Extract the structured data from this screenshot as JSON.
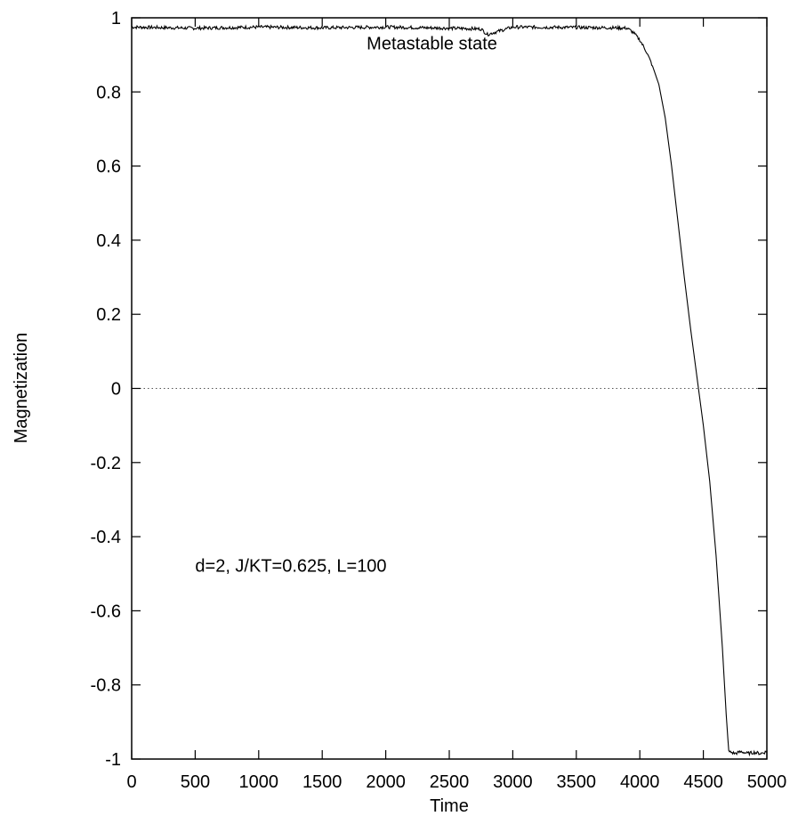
{
  "chart_data": {
    "type": "line",
    "title": "",
    "xlabel": "Time",
    "ylabel": "Magnetization",
    "xlim": [
      0,
      5000
    ],
    "ylim": [
      -1,
      1
    ],
    "x_ticks": [
      0,
      500,
      1000,
      1500,
      2000,
      2500,
      3000,
      3500,
      4000,
      4500,
      5000
    ],
    "x_tick_labels": [
      "0",
      "500",
      "1000",
      "1500",
      "2000",
      "2500",
      "3000",
      "3500",
      "4000",
      "4500",
      "5000"
    ],
    "y_ticks": [
      -1,
      -0.8,
      -0.6,
      -0.4,
      -0.2,
      0,
      0.2,
      0.4,
      0.6,
      0.8,
      1
    ],
    "y_tick_labels": [
      "-1",
      "-0.8",
      "-0.6",
      "-0.4",
      "-0.2",
      "0",
      "0.2",
      "0.4",
      "0.6",
      "0.8",
      "1"
    ],
    "grid": false,
    "annotations": [
      {
        "text": "Metastable state",
        "x": 1850,
        "y": 0.915
      },
      {
        "text": "d=2, J/KT=0.625, L=100",
        "x": 500,
        "y": -0.495
      }
    ],
    "reference_lines": [
      {
        "axis": "y",
        "value": 0,
        "style": "dotted"
      }
    ],
    "series": [
      {
        "x": [
          0,
          500,
          1000,
          1500,
          2000,
          2500,
          2750,
          2800,
          3000,
          3500,
          3800,
          3900,
          3950,
          4000,
          4050,
          4100,
          4150,
          4200,
          4250,
          4300,
          4350,
          4400,
          4450,
          4500,
          4550,
          4600,
          4650,
          4680,
          4700,
          4750,
          4800,
          4850,
          4900,
          4950,
          5000
        ],
        "values": [
          0.975,
          0.972,
          0.975,
          0.973,
          0.975,
          0.972,
          0.97,
          0.955,
          0.975,
          0.974,
          0.973,
          0.972,
          0.96,
          0.94,
          0.91,
          0.87,
          0.82,
          0.73,
          0.6,
          0.45,
          0.3,
          0.16,
          0.03,
          -0.1,
          -0.25,
          -0.45,
          -0.7,
          -0.88,
          -0.98,
          -0.985,
          -0.98,
          -0.985,
          -0.982,
          -0.985,
          -0.98
        ]
      }
    ]
  }
}
